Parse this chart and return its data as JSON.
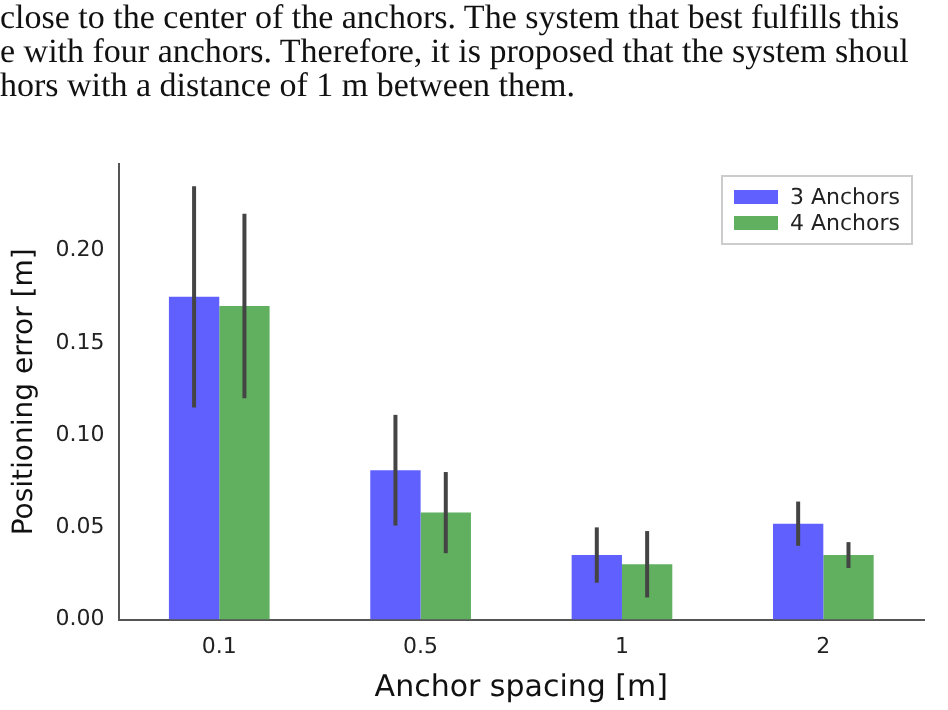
{
  "chart_data": {
    "type": "bar",
    "xlabel": "Anchor spacing [m]",
    "ylabel": "Positioning error [m]",
    "annotations": [
      "close to the center of the anchors. The system that best fulfills this",
      "e with four anchors. Therefore, it is proposed that the system shoul",
      "hors with a distance of 1 m between them."
    ],
    "categories": [
      "0.1",
      "0.5",
      "1",
      "2"
    ],
    "series": [
      {
        "name": "3 Anchors",
        "color": "#6060ff",
        "values": [
          0.175,
          0.081,
          0.035,
          0.052
        ],
        "errors": [
          0.06,
          0.03,
          0.015,
          0.012
        ]
      },
      {
        "name": "4 Anchors",
        "color": "#60b060",
        "values": [
          0.17,
          0.058,
          0.03,
          0.035
        ],
        "errors": [
          0.05,
          0.022,
          0.018,
          0.007
        ]
      }
    ],
    "ylim": [
      0,
      0.247
    ],
    "yticks": [
      {
        "value": 0,
        "label": "0.00"
      },
      {
        "value": 0.05,
        "label": "0.05"
      },
      {
        "value": 0.1,
        "label": "0.10"
      },
      {
        "value": 0.15,
        "label": "0.15"
      },
      {
        "value": 0.2,
        "label": "0.20"
      }
    ],
    "grid": false,
    "legend": "top right"
  }
}
